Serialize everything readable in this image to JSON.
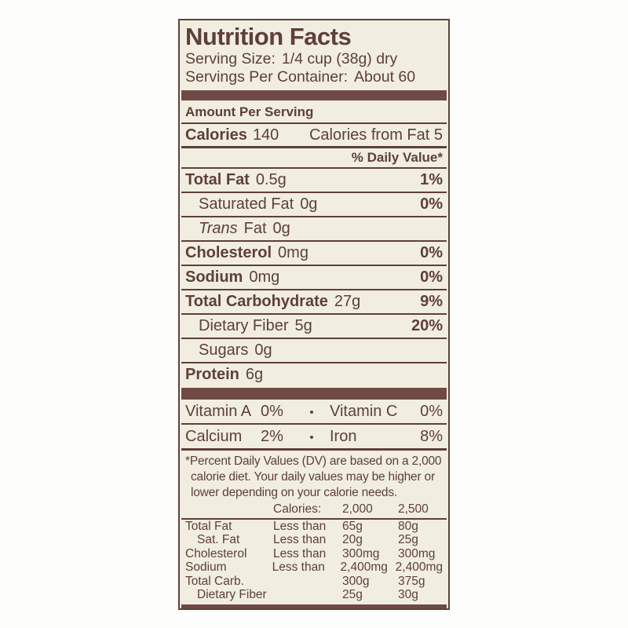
{
  "label": {
    "title": "Nutrition Facts",
    "serving": {
      "size_label": "Serving Size:",
      "size_value": "1/4 cup (38g) dry",
      "per_container_label": "Servings Per Container:",
      "per_container_value": "About 60"
    },
    "amount_per_serving": "Amount Per Serving",
    "calories": {
      "label": "Calories",
      "value": "140",
      "from_fat": "Calories from Fat 5"
    },
    "daily_value_header": "% Daily Value*",
    "nutrients": [
      {
        "name": "Total Fat",
        "amount": "0.5g",
        "dv": "1%"
      },
      {
        "name": "Saturated Fat",
        "amount": "0g",
        "dv": "0%"
      },
      {
        "name_italic": "Trans",
        "name": "Fat",
        "amount": "0g",
        "dv": ""
      },
      {
        "name": "Cholesterol",
        "amount": "0mg",
        "dv": "0%"
      },
      {
        "name": "Sodium",
        "amount": "0mg",
        "dv": "0%"
      },
      {
        "name": "Total Carbohydrate",
        "amount": "27g",
        "dv": "9%"
      },
      {
        "name": "Dietary Fiber",
        "amount": "5g",
        "dv": "20%"
      },
      {
        "name": "Sugars",
        "amount": "0g",
        "dv": ""
      },
      {
        "name": "Protein",
        "amount": "6g",
        "dv": ""
      }
    ],
    "vitamins": [
      {
        "left_name": "Vitamin A",
        "left_value": "0%",
        "bullet": "•",
        "right_name": "Vitamin C",
        "right_value": "0%"
      },
      {
        "left_name": "Calcium",
        "left_value": "2%",
        "bullet": "•",
        "right_name": "Iron",
        "right_value": "8%"
      }
    ],
    "footnote": "*Percent Daily Values (DV) are based on a 2,000 calorie diet. Your daily values may be higher or lower depending on your calorie needs.",
    "dv_table": {
      "calories_label": "Calories:",
      "col_2000": "2,000",
      "col_2500": "2,500",
      "rows": [
        {
          "name": "Total Fat",
          "condition": "Less than",
          "v2000": "65g",
          "v2500": "80g"
        },
        {
          "name": "Sat. Fat",
          "condition": "Less than",
          "v2000": "20g",
          "v2500": "25g"
        },
        {
          "name": "Cholesterol",
          "condition": "Less than",
          "v2000": "300mg",
          "v2500": "300mg"
        },
        {
          "name": "Sodium",
          "condition": "Less than",
          "v2000": "2,400mg",
          "v2500": "2,400mg"
        },
        {
          "name": "Total Carb.",
          "condition": "",
          "v2000": "300g",
          "v2500": "375g"
        },
        {
          "name": "Dietary Fiber",
          "condition": "",
          "v2000": "25g",
          "v2500": "30g"
        }
      ]
    },
    "colors": {
      "text_brown": "#5e4038",
      "bar_brown": "#6f4a44",
      "label_background": "#f1ede1",
      "page_background": "#fdfdfb"
    }
  }
}
